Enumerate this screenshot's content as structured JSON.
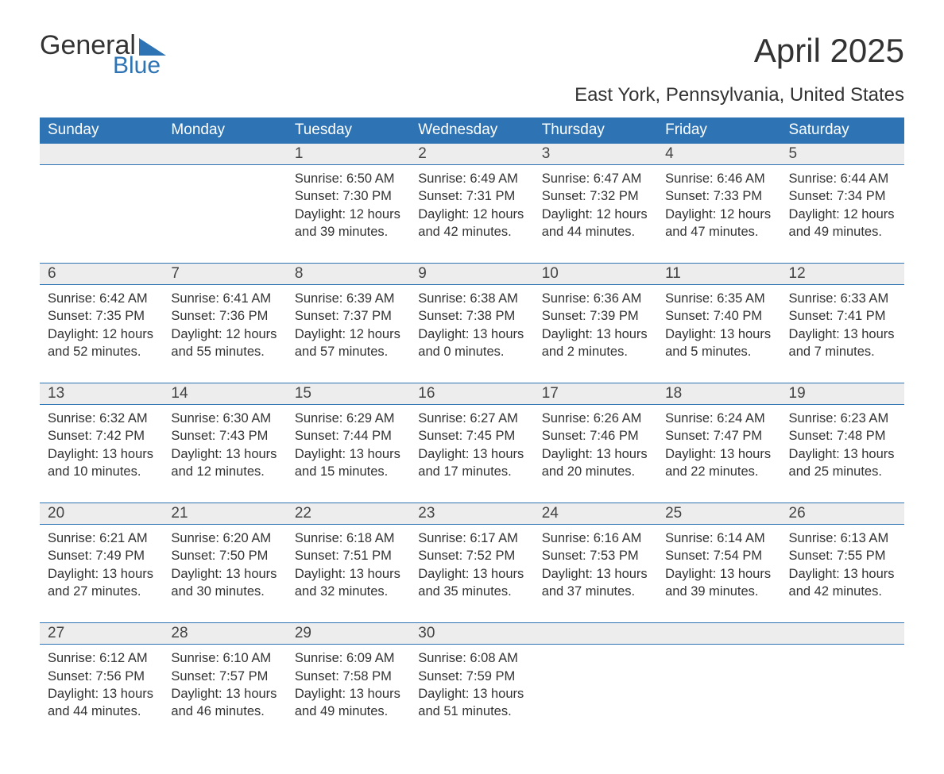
{
  "brand": {
    "word1": "General",
    "word2": "Blue",
    "brand_color": "#2e74b5"
  },
  "title": "April 2025",
  "location": "East York, Pennsylvania, United States",
  "colors": {
    "header_bg": "#2e74b5",
    "header_text": "#ffffff",
    "daynum_bg": "#ededed",
    "border": "#2e74b5",
    "text": "#333333",
    "bg": "#ffffff"
  },
  "fonts": {
    "body": "Arial",
    "title_size": 42,
    "location_size": 24,
    "th_size": 19,
    "cell_size": 16.5
  },
  "days_of_week": [
    "Sunday",
    "Monday",
    "Tuesday",
    "Wednesday",
    "Thursday",
    "Friday",
    "Saturday"
  ],
  "weeks": [
    [
      null,
      null,
      {
        "num": "1",
        "sunrise": "Sunrise: 6:50 AM",
        "sunset": "Sunset: 7:30 PM",
        "daylight": "Daylight: 12 hours and 39 minutes."
      },
      {
        "num": "2",
        "sunrise": "Sunrise: 6:49 AM",
        "sunset": "Sunset: 7:31 PM",
        "daylight": "Daylight: 12 hours and 42 minutes."
      },
      {
        "num": "3",
        "sunrise": "Sunrise: 6:47 AM",
        "sunset": "Sunset: 7:32 PM",
        "daylight": "Daylight: 12 hours and 44 minutes."
      },
      {
        "num": "4",
        "sunrise": "Sunrise: 6:46 AM",
        "sunset": "Sunset: 7:33 PM",
        "daylight": "Daylight: 12 hours and 47 minutes."
      },
      {
        "num": "5",
        "sunrise": "Sunrise: 6:44 AM",
        "sunset": "Sunset: 7:34 PM",
        "daylight": "Daylight: 12 hours and 49 minutes."
      }
    ],
    [
      {
        "num": "6",
        "sunrise": "Sunrise: 6:42 AM",
        "sunset": "Sunset: 7:35 PM",
        "daylight": "Daylight: 12 hours and 52 minutes."
      },
      {
        "num": "7",
        "sunrise": "Sunrise: 6:41 AM",
        "sunset": "Sunset: 7:36 PM",
        "daylight": "Daylight: 12 hours and 55 minutes."
      },
      {
        "num": "8",
        "sunrise": "Sunrise: 6:39 AM",
        "sunset": "Sunset: 7:37 PM",
        "daylight": "Daylight: 12 hours and 57 minutes."
      },
      {
        "num": "9",
        "sunrise": "Sunrise: 6:38 AM",
        "sunset": "Sunset: 7:38 PM",
        "daylight": "Daylight: 13 hours and 0 minutes."
      },
      {
        "num": "10",
        "sunrise": "Sunrise: 6:36 AM",
        "sunset": "Sunset: 7:39 PM",
        "daylight": "Daylight: 13 hours and 2 minutes."
      },
      {
        "num": "11",
        "sunrise": "Sunrise: 6:35 AM",
        "sunset": "Sunset: 7:40 PM",
        "daylight": "Daylight: 13 hours and 5 minutes."
      },
      {
        "num": "12",
        "sunrise": "Sunrise: 6:33 AM",
        "sunset": "Sunset: 7:41 PM",
        "daylight": "Daylight: 13 hours and 7 minutes."
      }
    ],
    [
      {
        "num": "13",
        "sunrise": "Sunrise: 6:32 AM",
        "sunset": "Sunset: 7:42 PM",
        "daylight": "Daylight: 13 hours and 10 minutes."
      },
      {
        "num": "14",
        "sunrise": "Sunrise: 6:30 AM",
        "sunset": "Sunset: 7:43 PM",
        "daylight": "Daylight: 13 hours and 12 minutes."
      },
      {
        "num": "15",
        "sunrise": "Sunrise: 6:29 AM",
        "sunset": "Sunset: 7:44 PM",
        "daylight": "Daylight: 13 hours and 15 minutes."
      },
      {
        "num": "16",
        "sunrise": "Sunrise: 6:27 AM",
        "sunset": "Sunset: 7:45 PM",
        "daylight": "Daylight: 13 hours and 17 minutes."
      },
      {
        "num": "17",
        "sunrise": "Sunrise: 6:26 AM",
        "sunset": "Sunset: 7:46 PM",
        "daylight": "Daylight: 13 hours and 20 minutes."
      },
      {
        "num": "18",
        "sunrise": "Sunrise: 6:24 AM",
        "sunset": "Sunset: 7:47 PM",
        "daylight": "Daylight: 13 hours and 22 minutes."
      },
      {
        "num": "19",
        "sunrise": "Sunrise: 6:23 AM",
        "sunset": "Sunset: 7:48 PM",
        "daylight": "Daylight: 13 hours and 25 minutes."
      }
    ],
    [
      {
        "num": "20",
        "sunrise": "Sunrise: 6:21 AM",
        "sunset": "Sunset: 7:49 PM",
        "daylight": "Daylight: 13 hours and 27 minutes."
      },
      {
        "num": "21",
        "sunrise": "Sunrise: 6:20 AM",
        "sunset": "Sunset: 7:50 PM",
        "daylight": "Daylight: 13 hours and 30 minutes."
      },
      {
        "num": "22",
        "sunrise": "Sunrise: 6:18 AM",
        "sunset": "Sunset: 7:51 PM",
        "daylight": "Daylight: 13 hours and 32 minutes."
      },
      {
        "num": "23",
        "sunrise": "Sunrise: 6:17 AM",
        "sunset": "Sunset: 7:52 PM",
        "daylight": "Daylight: 13 hours and 35 minutes."
      },
      {
        "num": "24",
        "sunrise": "Sunrise: 6:16 AM",
        "sunset": "Sunset: 7:53 PM",
        "daylight": "Daylight: 13 hours and 37 minutes."
      },
      {
        "num": "25",
        "sunrise": "Sunrise: 6:14 AM",
        "sunset": "Sunset: 7:54 PM",
        "daylight": "Daylight: 13 hours and 39 minutes."
      },
      {
        "num": "26",
        "sunrise": "Sunrise: 6:13 AM",
        "sunset": "Sunset: 7:55 PM",
        "daylight": "Daylight: 13 hours and 42 minutes."
      }
    ],
    [
      {
        "num": "27",
        "sunrise": "Sunrise: 6:12 AM",
        "sunset": "Sunset: 7:56 PM",
        "daylight": "Daylight: 13 hours and 44 minutes."
      },
      {
        "num": "28",
        "sunrise": "Sunrise: 6:10 AM",
        "sunset": "Sunset: 7:57 PM",
        "daylight": "Daylight: 13 hours and 46 minutes."
      },
      {
        "num": "29",
        "sunrise": "Sunrise: 6:09 AM",
        "sunset": "Sunset: 7:58 PM",
        "daylight": "Daylight: 13 hours and 49 minutes."
      },
      {
        "num": "30",
        "sunrise": "Sunrise: 6:08 AM",
        "sunset": "Sunset: 7:59 PM",
        "daylight": "Daylight: 13 hours and 51 minutes."
      },
      null,
      null,
      null
    ]
  ]
}
